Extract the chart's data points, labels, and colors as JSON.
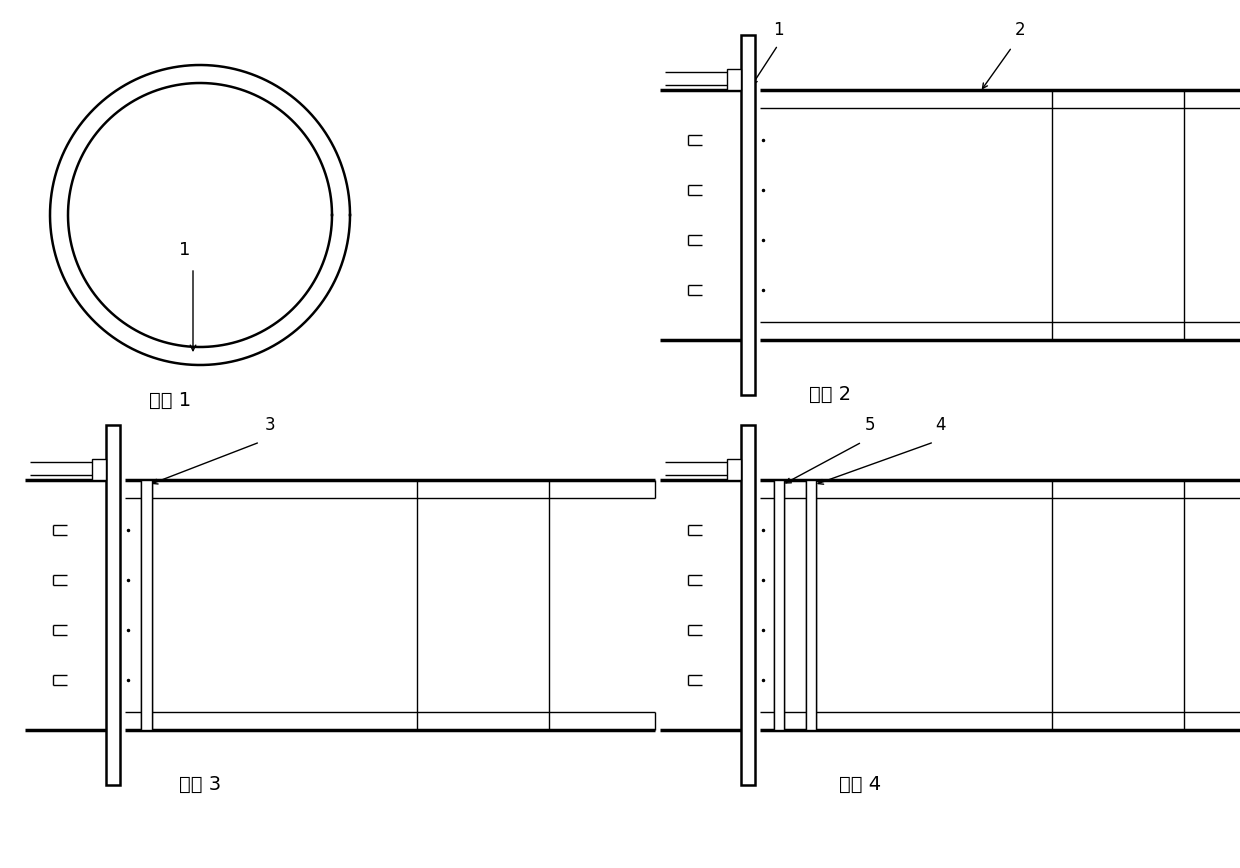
{
  "bg_color": "#ffffff",
  "line_color": "#000000",
  "labels": {
    "step1": "步骤 1",
    "step2": "步骤 2",
    "step3": "步骤 3",
    "step4": "步骤 4"
  },
  "annotations": {
    "s1_label": "1",
    "s2_label1": "1",
    "s2_label2": "2",
    "s3_label": "3",
    "s4_label4": "4",
    "s4_label5": "5"
  },
  "lw_thin": 1.0,
  "lw_med": 1.8,
  "lw_thick": 2.5
}
